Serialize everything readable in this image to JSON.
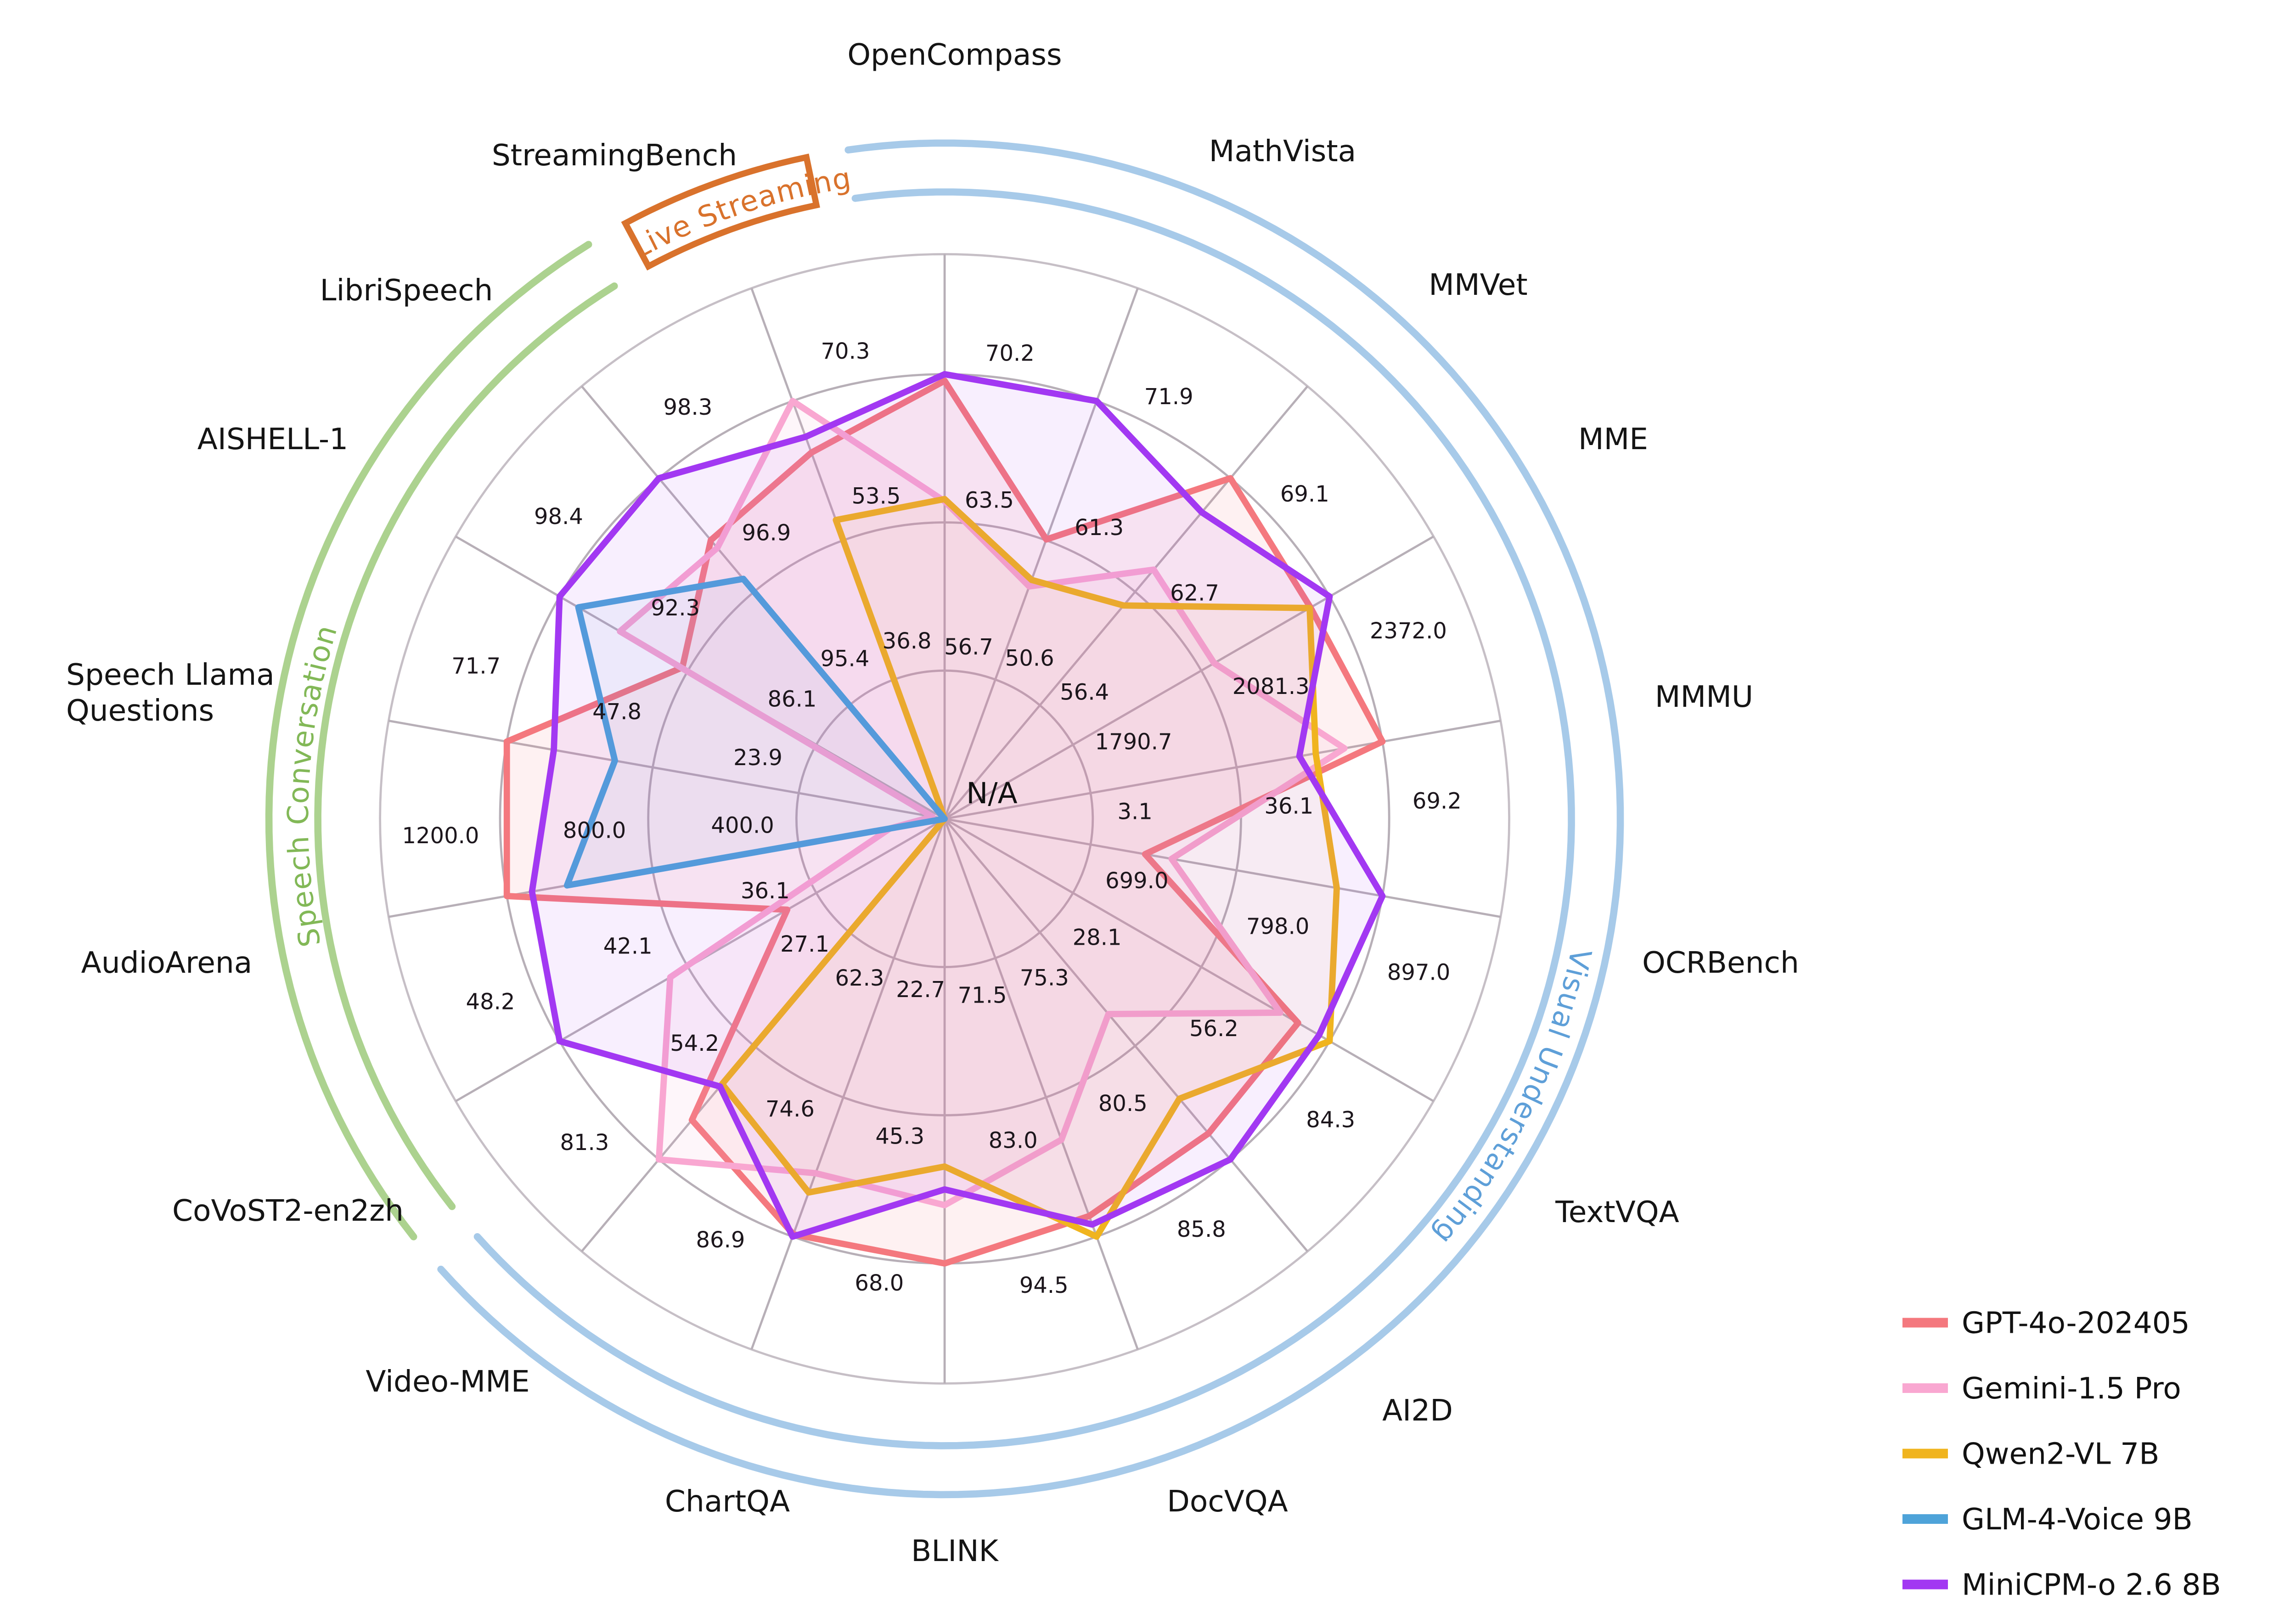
{
  "chart_data": {
    "type": "radar",
    "center_label": "N/A",
    "axes": [
      {
        "name": "OpenCompass",
        "ticks": [
          "56.7",
          "63.5",
          "70.2"
        ]
      },
      {
        "name": "MathVista",
        "ticks": [
          "50.6",
          "61.3",
          "71.9"
        ]
      },
      {
        "name": "MMVet",
        "ticks": [
          "56.4",
          "62.7",
          "69.1"
        ]
      },
      {
        "name": "MME",
        "ticks": [
          "1790.7",
          "2081.3",
          "2372.0"
        ]
      },
      {
        "name": "MMMU",
        "ticks": [
          "3.1",
          "36.1",
          "69.2"
        ]
      },
      {
        "name": "OCRBench",
        "ticks": [
          "699.0",
          "798.0",
          "897.0"
        ]
      },
      {
        "name": "TextVQA",
        "ticks": [
          "28.1",
          "56.2",
          "84.3"
        ]
      },
      {
        "name": "AI2D",
        "ticks": [
          "75.3",
          "80.5",
          "85.8"
        ]
      },
      {
        "name": "DocVQA",
        "ticks": [
          "71.5",
          "83.0",
          "94.5"
        ]
      },
      {
        "name": "BLINK",
        "ticks": [
          "22.7",
          "45.3",
          "68.0"
        ]
      },
      {
        "name": "ChartQA",
        "ticks": [
          "62.3",
          "74.6",
          "86.9"
        ]
      },
      {
        "name": "Video-MME",
        "ticks": [
          "27.1",
          "54.2",
          "81.3"
        ]
      },
      {
        "name": "CoVoST2-en2zh",
        "ticks": [
          "36.1",
          "42.1",
          "48.2"
        ]
      },
      {
        "name": "AudioArena",
        "ticks": [
          "400.0",
          "800.0",
          "1200.0"
        ]
      },
      {
        "name": "Speech Llama Questions",
        "name_lines": [
          "Speech Llama",
          "Questions"
        ],
        "ticks": [
          "23.9",
          "47.8",
          "71.7"
        ]
      },
      {
        "name": "AISHELL-1",
        "ticks": [
          "86.1",
          "92.3",
          "98.4"
        ]
      },
      {
        "name": "LibriSpeech",
        "ticks": [
          "95.4",
          "96.9",
          "98.3"
        ]
      },
      {
        "name": "StreamingBench",
        "ticks": [
          "36.8",
          "53.5",
          "70.3"
        ]
      }
    ],
    "groups": [
      {
        "label": "Visual Understanding",
        "arc_color": "#a7cae9",
        "text_color": "#5e9fd8",
        "start_axis": 0,
        "end_axis": 11,
        "banner": false
      },
      {
        "label": "Speech Conversation",
        "arc_color": "#acd28f",
        "text_color": "#82b857",
        "start_axis": 12,
        "end_axis": 16,
        "banner": false
      },
      {
        "label": "Live Streaming",
        "arc_color": "#d9722c",
        "text_color": "#d9722c",
        "start_axis": 17,
        "end_axis": 17,
        "banner": true
      }
    ],
    "series": [
      {
        "name": "GPT-4o-202405",
        "color": "#f4787e",
        "values": [
          69.9,
          61.3,
          69.1,
          2328.7,
          69.2,
          736,
          77.4,
          84.6,
          92.8,
          68.0,
          86.7,
          71.9,
          37.5,
          1200,
          71.7,
          92.5,
          97.5,
          64.1
        ]
      },
      {
        "name": "Gemini-1.5 Pro",
        "color": "#f9a7d1",
        "values": [
          64.4,
          57.7,
          64.0,
          2110.6,
          60.6,
          754,
          73.5,
          79.1,
          86.5,
          59.1,
          81.3,
          81.3,
          43.0,
          150,
          2.0,
          95.5,
          97.4,
          70.3
        ]
      },
      {
        "name": "Qwen2-VL 7B",
        "color": "#f0b41e",
        "values": [
          64.5,
          58.2,
          62.0,
          2326.8,
          54.1,
          866,
          84.3,
          83.0,
          94.5,
          53.2,
          83.0,
          63.3,
          null,
          null,
          null,
          null,
          null,
          56.0
        ]
      },
      {
        "name": "GLM-4-Voice 9B",
        "color": "#4ea3d9",
        "values": [
          null,
          null,
          null,
          null,
          null,
          null,
          null,
          null,
          null,
          null,
          null,
          null,
          null,
          1035,
          54.0,
          97.5,
          97.0,
          null
        ]
      },
      {
        "name": "MiniCPM-o 2.6 8B",
        "color": "#a238f2",
        "values": [
          70.2,
          71.9,
          67.2,
          2372.0,
          50.4,
          897,
          82.0,
          85.8,
          93.5,
          56.7,
          86.9,
          63.9,
          48.2,
          1131,
          64.0,
          98.4,
          98.3,
          66.0
        ]
      }
    ]
  }
}
